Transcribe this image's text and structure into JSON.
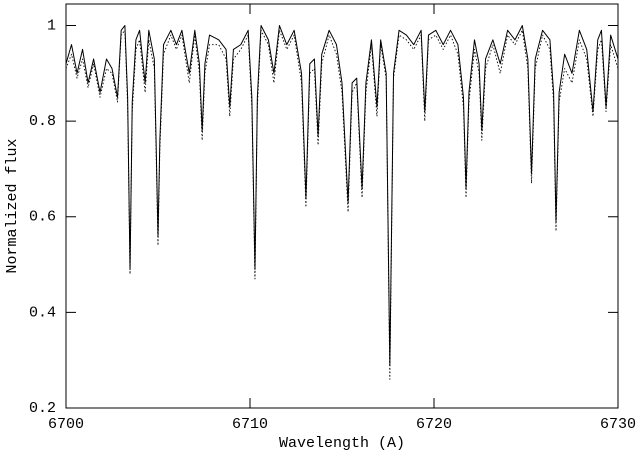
{
  "chart_data": {
    "type": "line",
    "xlabel": "Wavelength (A)",
    "ylabel": "Normalized flux",
    "xlim": [
      6700,
      6730
    ],
    "ylim": [
      0.2,
      1.045
    ],
    "xticks": [
      6700,
      6710,
      6720,
      6730
    ],
    "yticks": [
      0.2,
      0.4,
      0.6,
      0.8,
      1
    ],
    "x": [
      6700.0,
      6700.3,
      6700.6,
      6700.9,
      6701.2,
      6701.5,
      6701.85,
      6702.2,
      6702.5,
      6702.8,
      6703.0,
      6703.2,
      6703.35,
      6703.48,
      6703.6,
      6703.8,
      6704.0,
      6704.3,
      6704.5,
      6704.8,
      6704.9,
      6705.0,
      6705.1,
      6705.3,
      6705.7,
      6706.0,
      6706.3,
      6706.7,
      6707.0,
      6707.25,
      6707.4,
      6707.55,
      6707.8,
      6708.3,
      6708.7,
      6708.9,
      6709.1,
      6709.5,
      6709.9,
      6710.1,
      6710.27,
      6710.4,
      6710.6,
      6711.0,
      6711.3,
      6711.6,
      6712.0,
      6712.4,
      6712.8,
      6713.04,
      6713.25,
      6713.5,
      6713.7,
      6713.9,
      6714.3,
      6714.7,
      6715.0,
      6715.33,
      6715.55,
      6715.8,
      6716.09,
      6716.3,
      6716.6,
      6716.9,
      6717.1,
      6717.4,
      6717.6,
      6717.8,
      6718.1,
      6718.5,
      6718.9,
      6719.3,
      6719.5,
      6719.7,
      6720.1,
      6720.5,
      6720.9,
      6721.3,
      6721.6,
      6721.74,
      6721.9,
      6722.2,
      6722.45,
      6722.6,
      6722.8,
      6723.2,
      6723.6,
      6724.0,
      6724.4,
      6724.8,
      6725.1,
      6725.3,
      6725.5,
      6725.9,
      6726.3,
      6726.5,
      6726.63,
      6726.8,
      6727.1,
      6727.5,
      6727.9,
      6728.3,
      6728.64,
      6728.9,
      6729.1,
      6729.35,
      6729.6,
      6730.0
    ],
    "series": [
      {
        "color": "#000000",
        "style": "solid",
        "values": [
          0.92,
          0.96,
          0.9,
          0.95,
          0.88,
          0.93,
          0.86,
          0.93,
          0.91,
          0.85,
          0.99,
          1.0,
          0.85,
          0.49,
          0.84,
          0.97,
          0.99,
          0.88,
          0.99,
          0.93,
          0.75,
          0.56,
          0.76,
          0.96,
          0.99,
          0.96,
          0.99,
          0.9,
          0.99,
          0.92,
          0.78,
          0.92,
          0.98,
          0.97,
          0.95,
          0.83,
          0.95,
          0.96,
          0.99,
          0.85,
          0.49,
          0.85,
          1.0,
          0.97,
          0.9,
          1.0,
          0.96,
          0.99,
          0.9,
          0.64,
          0.92,
          0.93,
          0.77,
          0.94,
          0.99,
          0.96,
          0.88,
          0.63,
          0.88,
          0.89,
          0.66,
          0.88,
          0.97,
          0.83,
          0.97,
          0.9,
          0.29,
          0.9,
          0.99,
          0.98,
          0.96,
          0.99,
          0.82,
          0.98,
          0.99,
          0.96,
          0.99,
          0.96,
          0.85,
          0.66,
          0.86,
          0.97,
          0.92,
          0.78,
          0.93,
          0.97,
          0.92,
          0.99,
          0.97,
          1.0,
          0.93,
          0.69,
          0.93,
          0.99,
          0.97,
          0.86,
          0.59,
          0.86,
          0.94,
          0.9,
          0.99,
          0.95,
          0.82,
          0.97,
          0.99,
          0.83,
          0.98,
          0.93
        ]
      },
      {
        "color": "#000000",
        "style": "dotted",
        "values": [
          0.91,
          0.94,
          0.89,
          0.93,
          0.87,
          0.92,
          0.85,
          0.91,
          0.9,
          0.84,
          0.98,
          0.99,
          0.83,
          0.48,
          0.82,
          0.95,
          0.97,
          0.86,
          0.97,
          0.91,
          0.73,
          0.54,
          0.74,
          0.94,
          0.98,
          0.95,
          0.98,
          0.88,
          0.98,
          0.9,
          0.76,
          0.9,
          0.96,
          0.96,
          0.93,
          0.81,
          0.93,
          0.95,
          0.98,
          0.83,
          0.47,
          0.83,
          0.99,
          0.96,
          0.88,
          0.99,
          0.95,
          0.98,
          0.88,
          0.62,
          0.9,
          0.91,
          0.75,
          0.92,
          0.98,
          0.94,
          0.86,
          0.61,
          0.86,
          0.88,
          0.64,
          0.86,
          0.96,
          0.81,
          0.96,
          0.89,
          0.26,
          0.89,
          0.98,
          0.97,
          0.95,
          0.98,
          0.8,
          0.97,
          0.98,
          0.95,
          0.98,
          0.94,
          0.83,
          0.64,
          0.84,
          0.95,
          0.9,
          0.76,
          0.91,
          0.96,
          0.9,
          0.98,
          0.96,
          0.99,
          0.91,
          0.67,
          0.91,
          0.98,
          0.95,
          0.84,
          0.57,
          0.84,
          0.91,
          0.88,
          0.97,
          0.93,
          0.81,
          0.95,
          0.97,
          0.82,
          0.96,
          0.91
        ]
      }
    ]
  }
}
